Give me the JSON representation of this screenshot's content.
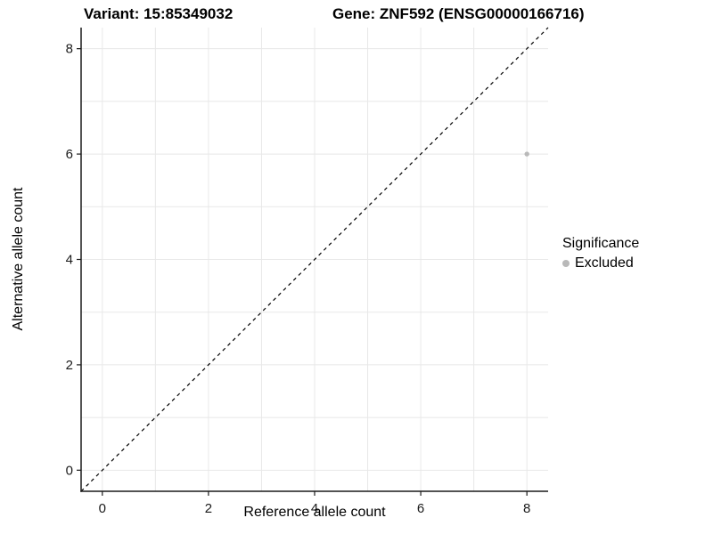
{
  "header": {
    "variant_title": "Variant: 15:85349032",
    "gene_title": "Gene: ZNF592 (ENSG00000166716)"
  },
  "axes": {
    "x_label": "Reference allele count",
    "y_label": "Alternative allele count"
  },
  "legend": {
    "title": "Significance",
    "items": [
      {
        "label": "Excluded",
        "color": "#b9b9b9"
      }
    ]
  },
  "chart_data": {
    "type": "scatter",
    "title": "Variant: 15:85349032  |  Gene: ZNF592 (ENSG00000166716)",
    "xlabel": "Reference allele count",
    "ylabel": "Alternative allele count",
    "xlim": [
      -0.4,
      8.4
    ],
    "ylim": [
      -0.4,
      8.4
    ],
    "xticks": [
      0,
      2,
      4,
      6,
      8
    ],
    "yticks": [
      0,
      2,
      4,
      6,
      8
    ],
    "grid": {
      "x": [
        0,
        1,
        2,
        3,
        4,
        5,
        6,
        7,
        8
      ],
      "y": [
        0,
        1,
        2,
        3,
        4,
        5,
        6,
        7,
        8
      ],
      "visible": true
    },
    "identity_line": {
      "from": [
        -0.4,
        -0.4
      ],
      "to": [
        8.4,
        8.4
      ],
      "style": "dashed",
      "color": "#000000"
    },
    "series": [
      {
        "name": "Excluded",
        "color": "#b9b9b9",
        "points": [
          {
            "x": 8,
            "y": 6
          }
        ]
      }
    ],
    "legend_position": "right",
    "colors": {
      "grid": "#e8e8e8",
      "axis_line": "#1a1a1a",
      "tick_text": "#1a1a1a",
      "background": "#ffffff"
    }
  }
}
